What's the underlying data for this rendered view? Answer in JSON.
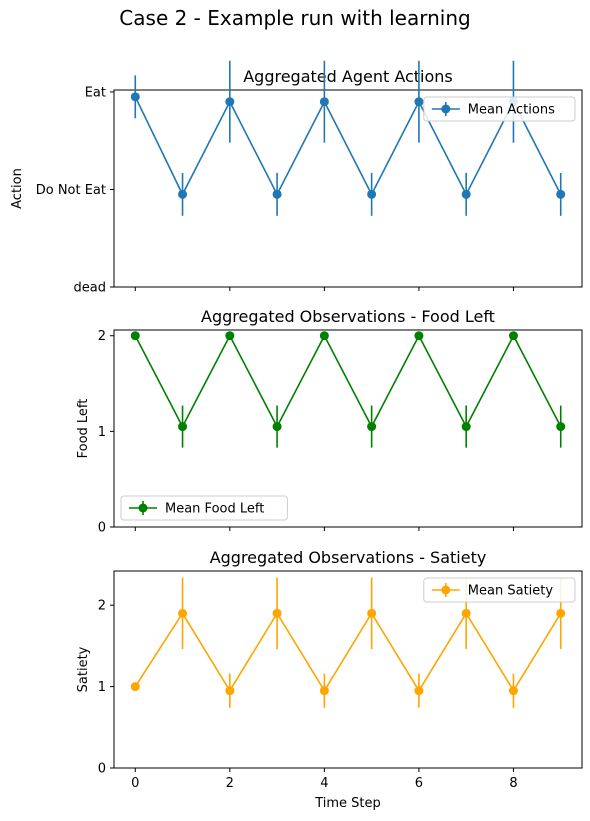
{
  "figure": {
    "title": "Case 2 - Example run with learning"
  },
  "chart_data": [
    {
      "type": "line",
      "title": "Aggregated Agent Actions",
      "xlabel": "",
      "ylabel": "Action",
      "xlim": [
        -0.45,
        9.45
      ],
      "ylim": [
        0,
        2.02
      ],
      "yticks": [
        0,
        1,
        2
      ],
      "yticklabels": [
        "dead",
        "Do Not Eat",
        "Eat"
      ],
      "xticks": [
        0,
        2,
        4,
        6,
        8
      ],
      "xticklabels": [],
      "grid": false,
      "legend": "upper right",
      "series": [
        {
          "name": "Mean Actions",
          "color": "#1f77b4",
          "x": [
            0,
            1,
            2,
            3,
            4,
            5,
            6,
            7,
            8,
            9
          ],
          "y": [
            1.95,
            0.95,
            1.9,
            0.95,
            1.9,
            0.95,
            1.9,
            0.95,
            1.9,
            0.95
          ],
          "err": [
            0.22,
            0.22,
            0.42,
            0.22,
            0.42,
            0.22,
            0.42,
            0.22,
            0.42,
            0.22
          ]
        }
      ]
    },
    {
      "type": "line",
      "title": "Aggregated Observations - Food Left",
      "xlabel": "",
      "ylabel": "Food Left",
      "xlim": [
        -0.45,
        9.45
      ],
      "ylim": [
        0,
        2.06
      ],
      "yticks": [
        0,
        1,
        2
      ],
      "yticklabels": [
        "0",
        "1",
        "2"
      ],
      "xticks": [
        0,
        2,
        4,
        6,
        8
      ],
      "xticklabels": [],
      "grid": false,
      "legend": "lower left",
      "series": [
        {
          "name": "Mean Food Left",
          "color": "#008000",
          "x": [
            0,
            1,
            2,
            3,
            4,
            5,
            6,
            7,
            8,
            9
          ],
          "y": [
            2,
            1.05,
            2,
            1.05,
            2,
            1.05,
            2,
            1.05,
            2,
            1.05
          ],
          "err": [
            0,
            0.22,
            0,
            0.22,
            0,
            0.22,
            0,
            0.22,
            0,
            0.22
          ]
        }
      ]
    },
    {
      "type": "line",
      "title": "Aggregated Observations - Satiety",
      "xlabel": "Time Step",
      "ylabel": "Satiety",
      "xlim": [
        -0.45,
        9.45
      ],
      "ylim": [
        0,
        2.42
      ],
      "yticks": [
        0,
        1,
        2
      ],
      "yticklabels": [
        "0",
        "1",
        "2"
      ],
      "xticks": [
        0,
        2,
        4,
        6,
        8
      ],
      "xticklabels": [
        "0",
        "2",
        "4",
        "6",
        "8"
      ],
      "grid": false,
      "legend": "upper right",
      "series": [
        {
          "name": "Mean Satiety",
          "color": "#ffa500",
          "x": [
            0,
            1,
            2,
            3,
            4,
            5,
            6,
            7,
            8,
            9
          ],
          "y": [
            1,
            1.9,
            0.95,
            1.9,
            0.95,
            1.9,
            0.95,
            1.9,
            0.95,
            1.9
          ],
          "err": [
            0,
            0.44,
            0.21,
            0.44,
            0.21,
            0.44,
            0.21,
            0.44,
            0.21,
            0.44
          ]
        }
      ]
    }
  ]
}
